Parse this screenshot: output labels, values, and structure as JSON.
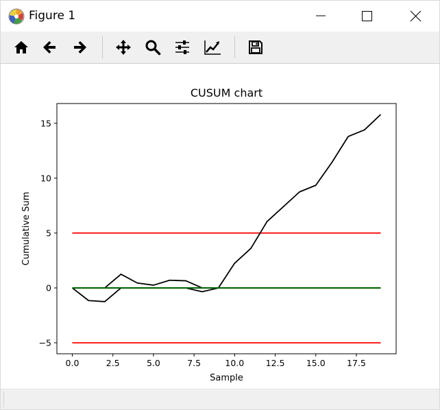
{
  "window": {
    "title": "Figure 1",
    "controls": [
      "minimize",
      "maximize",
      "close"
    ]
  },
  "toolbar": {
    "tools": [
      {
        "name": "home",
        "icon": "home-icon"
      },
      {
        "name": "back",
        "icon": "arrow-left-icon"
      },
      {
        "name": "forward",
        "icon": "arrow-right-icon"
      },
      {
        "name": "pan",
        "icon": "move-icon"
      },
      {
        "name": "zoom",
        "icon": "zoom-icon"
      },
      {
        "name": "configure-subplots",
        "icon": "sliders-icon"
      },
      {
        "name": "edit-axis",
        "icon": "line-chart-icon"
      },
      {
        "name": "save",
        "icon": "save-icon"
      }
    ]
  },
  "chart_data": {
    "type": "line",
    "title": "CUSUM chart",
    "xlabel": "Sample",
    "ylabel": "Cumulative Sum",
    "xlim": [
      -0.95,
      19.95
    ],
    "ylim": [
      -6.0,
      16.8
    ],
    "xticks": [
      "0.0",
      "2.5",
      "5.0",
      "7.5",
      "10.0",
      "12.5",
      "15.0",
      "17.5"
    ],
    "xtick_values": [
      0,
      2.5,
      5,
      7.5,
      10,
      12.5,
      15,
      17.5
    ],
    "yticks": [
      "−5",
      "0",
      "5",
      "10",
      "15"
    ],
    "ytick_values": [
      -5,
      0,
      5,
      10,
      15
    ],
    "grid": false,
    "series": [
      {
        "role": "positive-cusum",
        "color": "#000000",
        "x": [
          0,
          1,
          2,
          3,
          4,
          5,
          6,
          7,
          8,
          9,
          10,
          11,
          12,
          13,
          14,
          15,
          16,
          17,
          18,
          19
        ],
        "values": [
          0,
          0,
          0,
          1.25,
          0.45,
          0.25,
          0.7,
          0.65,
          0,
          0,
          2.25,
          3.6,
          6.05,
          7.4,
          8.75,
          9.35,
          11.45,
          13.8,
          14.4,
          15.8
        ]
      },
      {
        "role": "negative-cusum",
        "color": "#000000",
        "x": [
          0,
          1,
          2,
          3,
          4,
          5,
          6,
          7,
          8,
          9,
          10,
          11,
          12,
          13,
          14,
          15,
          16,
          17,
          18,
          19
        ],
        "values": [
          0,
          -1.15,
          -1.25,
          0,
          0,
          0,
          0,
          0,
          -0.35,
          0,
          0,
          0,
          0,
          0,
          0,
          0,
          0,
          0,
          0,
          0
        ]
      },
      {
        "role": "upper-limit",
        "color": "#ff0000",
        "x": [
          0,
          19
        ],
        "values": [
          5,
          5
        ]
      },
      {
        "role": "lower-limit",
        "color": "#ff0000",
        "x": [
          0,
          19
        ],
        "values": [
          -5,
          -5
        ]
      },
      {
        "role": "center-line",
        "color": "#006400",
        "x": [
          0,
          19
        ],
        "values": [
          0,
          0
        ]
      }
    ]
  }
}
